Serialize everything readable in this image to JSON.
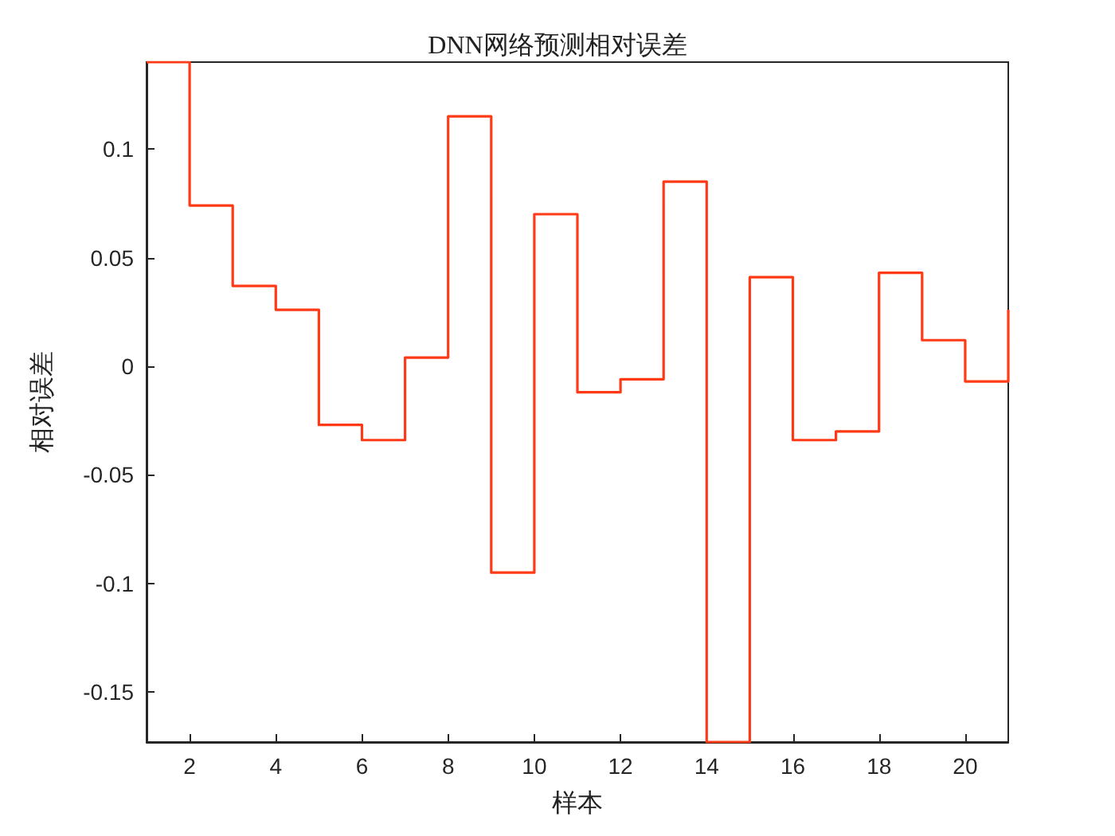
{
  "chart_data": {
    "type": "step",
    "title": "DNN网络预测相对误差",
    "xlabel": "样本",
    "ylabel": "相对误差",
    "x": [
      1,
      2,
      3,
      4,
      5,
      6,
      7,
      8,
      9,
      10,
      11,
      12,
      13,
      14,
      15,
      16,
      17,
      18,
      19,
      20,
      21
    ],
    "series": [
      {
        "color": "#ff3a17",
        "values": [
          0.14,
          0.074,
          0.037,
          0.026,
          -0.027,
          -0.034,
          0.004,
          0.115,
          -0.095,
          0.07,
          -0.012,
          -0.006,
          0.085,
          -0.173,
          0.041,
          -0.034,
          -0.03,
          0.043,
          0.012,
          -0.007,
          0.026
        ]
      }
    ],
    "xlim": [
      1,
      21
    ],
    "xticks": [
      2,
      4,
      6,
      8,
      10,
      12,
      14,
      16,
      18,
      20
    ],
    "ylim": [
      -0.173,
      0.14
    ],
    "yticks": [
      -0.15,
      -0.1,
      -0.05,
      0,
      0.05,
      0.1
    ],
    "grid": false,
    "marker": "none",
    "line_style": "solid"
  }
}
